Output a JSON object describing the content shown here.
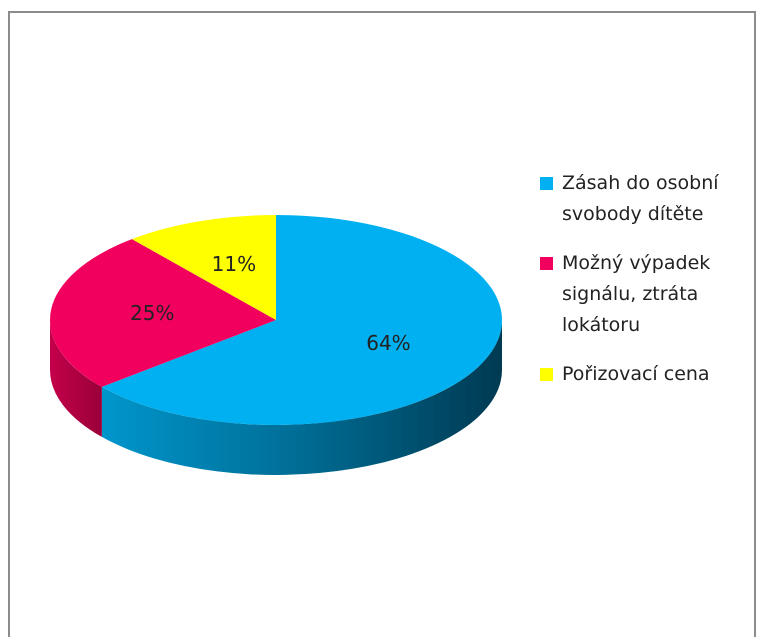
{
  "chart_data": {
    "type": "pie",
    "categories": [
      "Zásah do osobní svobody dítěte",
      "Možný výpadek signálu, ztráta lokátoru",
      "Pořizovací cena"
    ],
    "values": [
      64,
      25,
      11
    ],
    "value_labels": [
      "64%",
      "25%",
      "11%"
    ],
    "colors": [
      "#00b0f0",
      "#f2005e",
      "#ffff00"
    ],
    "legend": "right"
  }
}
